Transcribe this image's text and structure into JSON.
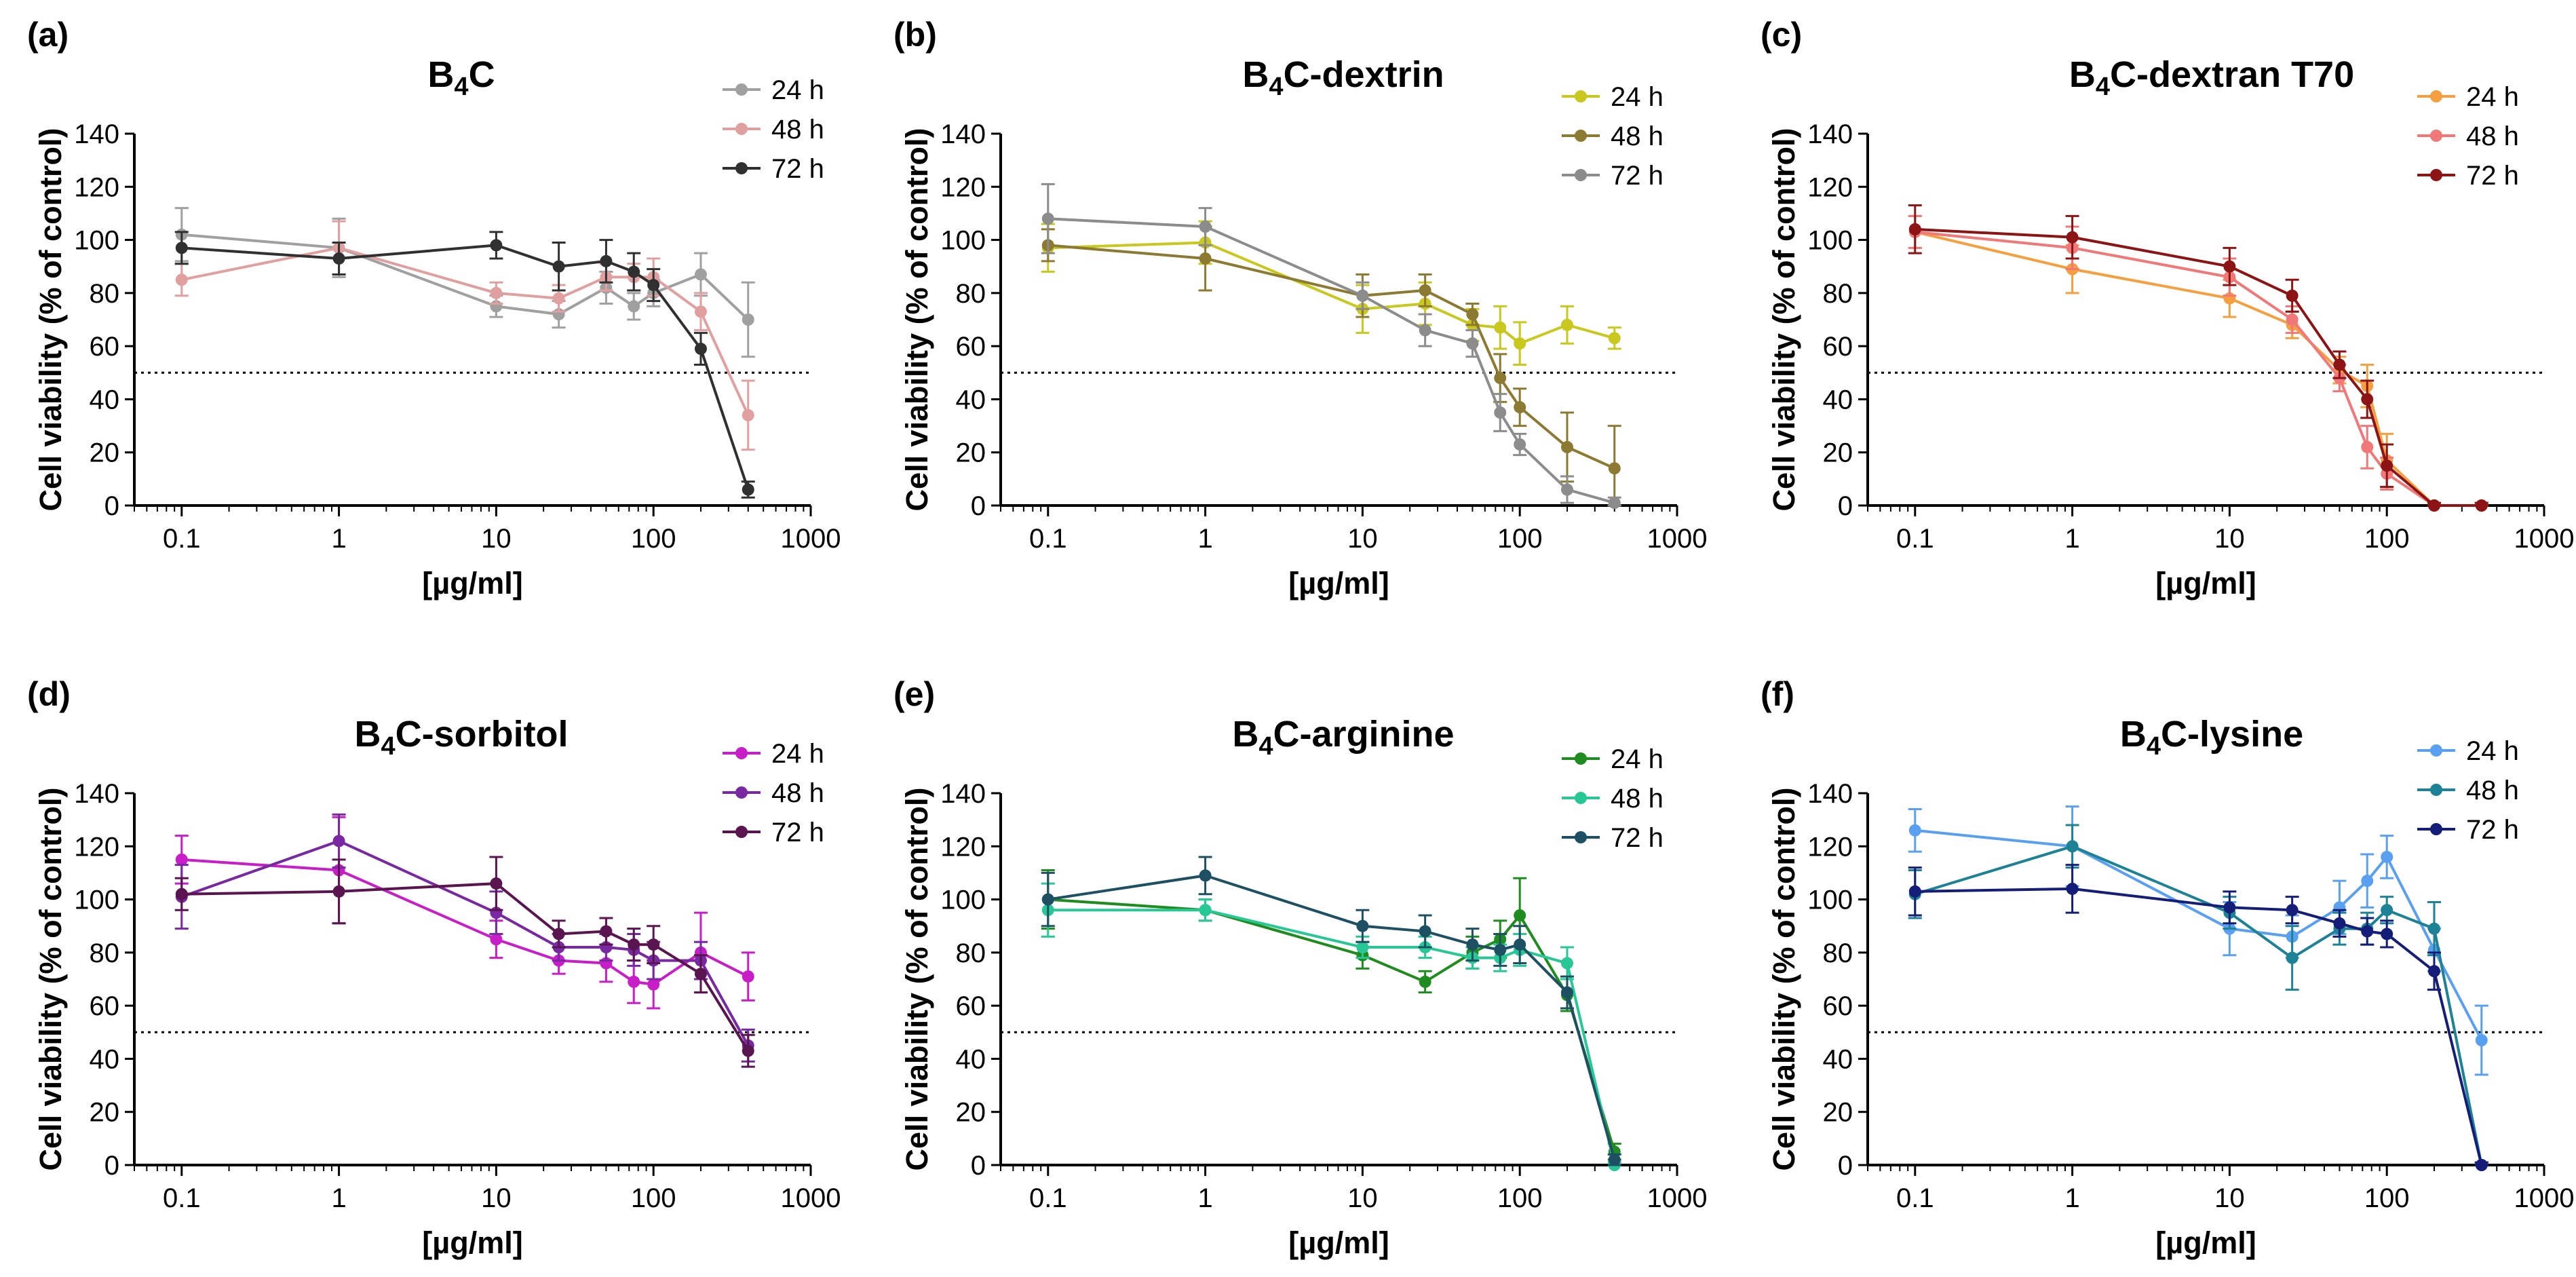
{
  "chart_data": [
    {
      "type": "line",
      "panel": "(a)",
      "title_main": "B",
      "title_sub": "4",
      "title_rest": "C",
      "xlabel": "[µg/ml]",
      "ylabel": "Cell viability (% of control)",
      "xscale": "log",
      "xlim": [
        0.05,
        1000
      ],
      "ylim": [
        0,
        140
      ],
      "xticks": [
        "0.1",
        "1",
        "10",
        "100",
        "1000"
      ],
      "yticks": [
        "0",
        "20",
        "40",
        "60",
        "80",
        "100",
        "120",
        "140"
      ],
      "reference_line": 50,
      "legend_position": "top-right",
      "series": [
        {
          "name": "24 h",
          "color": "#a0a0a0",
          "x": [
            0.1,
            1,
            10,
            25,
            50,
            75,
            100,
            200,
            400
          ],
          "y": [
            102,
            97,
            75,
            72,
            82,
            75,
            80,
            87,
            70
          ],
          "err": [
            10,
            11,
            4,
            5,
            6,
            5,
            5,
            8,
            14
          ]
        },
        {
          "name": "48 h",
          "color": "#e0a0a0",
          "x": [
            0.1,
            1,
            10,
            25,
            50,
            75,
            100,
            200,
            400
          ],
          "y": [
            85,
            97,
            80,
            78,
            86,
            86,
            86,
            73,
            34
          ],
          "err": [
            6,
            10,
            4,
            5,
            5,
            5,
            7,
            7,
            13
          ]
        },
        {
          "name": "72 h",
          "color": "#303030",
          "x": [
            0.1,
            1,
            10,
            25,
            50,
            75,
            100,
            200,
            400
          ],
          "y": [
            97,
            93,
            98,
            90,
            92,
            88,
            83,
            59,
            6
          ],
          "err": [
            6,
            6,
            5,
            9,
            8,
            7,
            6,
            6,
            3
          ]
        }
      ]
    },
    {
      "type": "line",
      "panel": "(b)",
      "title_main": "B",
      "title_sub": "4",
      "title_rest": "C-dextrin",
      "xlabel": "[µg/ml]",
      "ylabel": "Cell viability (% of control)",
      "xscale": "log",
      "xlim": [
        0.05,
        1000
      ],
      "ylim": [
        0,
        140
      ],
      "xticks": [
        "0.1",
        "1",
        "10",
        "100",
        "1000"
      ],
      "yticks": [
        "0",
        "20",
        "40",
        "60",
        "80",
        "100",
        "120",
        "140"
      ],
      "reference_line": 50,
      "legend_position": "top-right",
      "series": [
        {
          "name": "24 h",
          "color": "#c8c81e",
          "x": [
            0.1,
            1,
            10,
            25,
            50,
            75,
            100,
            200,
            400
          ],
          "y": [
            97,
            99,
            74,
            76,
            68,
            67,
            61,
            68,
            63
          ],
          "err": [
            9,
            8,
            9,
            8,
            6,
            8,
            8,
            7,
            4
          ]
        },
        {
          "name": "48 h",
          "color": "#8c7a32",
          "x": [
            0.1,
            1,
            10,
            25,
            50,
            75,
            100,
            200,
            400
          ],
          "y": [
            98,
            93,
            79,
            81,
            72,
            48,
            37,
            22,
            14
          ],
          "err": [
            6,
            12,
            8,
            6,
            4,
            9,
            7,
            13,
            16
          ]
        },
        {
          "name": "72 h",
          "color": "#8c8c8c",
          "x": [
            0.1,
            1,
            10,
            25,
            50,
            75,
            100,
            200,
            400
          ],
          "y": [
            108,
            105,
            79,
            66,
            61,
            35,
            23,
            6,
            1
          ],
          "err": [
            13,
            7,
            5,
            6,
            5,
            7,
            4,
            5,
            2
          ]
        }
      ]
    },
    {
      "type": "line",
      "panel": "(c)",
      "title_main": "B",
      "title_sub": "4",
      "title_rest": "C-dextran T70",
      "xlabel": "[µg/ml]",
      "ylabel": "Cell viability (% of control)",
      "xscale": "log",
      "xlim": [
        0.05,
        1000
      ],
      "ylim": [
        0,
        140
      ],
      "xticks": [
        "0.1",
        "1",
        "10",
        "100",
        "1000"
      ],
      "yticks": [
        "0",
        "20",
        "40",
        "60",
        "80",
        "100",
        "120",
        "140"
      ],
      "reference_line": 50,
      "legend_position": "top-right",
      "series": [
        {
          "name": "24 h",
          "color": "#f5a040",
          "x": [
            0.1,
            1,
            10,
            25,
            50,
            75,
            100,
            200,
            400
          ],
          "y": [
            103,
            89,
            78,
            68,
            51,
            45,
            17,
            0,
            0
          ],
          "err": [
            6,
            9,
            7,
            5,
            5,
            8,
            10,
            1,
            1
          ]
        },
        {
          "name": "48 h",
          "color": "#f07878",
          "x": [
            0.1,
            1,
            10,
            25,
            50,
            75,
            100,
            200,
            400
          ],
          "y": [
            103,
            97,
            86,
            70,
            48,
            22,
            12,
            0,
            0
          ],
          "err": [
            6,
            8,
            7,
            5,
            5,
            8,
            6,
            1,
            1
          ]
        },
        {
          "name": "72 h",
          "color": "#8c1414",
          "x": [
            0.1,
            1,
            10,
            25,
            50,
            75,
            100,
            200,
            400
          ],
          "y": [
            104,
            101,
            90,
            79,
            53,
            40,
            15,
            0,
            0
          ],
          "err": [
            9,
            8,
            7,
            6,
            5,
            7,
            8,
            1,
            1
          ]
        }
      ]
    },
    {
      "type": "line",
      "panel": "(d)",
      "title_main": "B",
      "title_sub": "4",
      "title_rest": "C-sorbitol",
      "xlabel": "[µg/ml]",
      "ylabel": "Cell viability (% of control)",
      "xscale": "log",
      "xlim": [
        0.05,
        1000
      ],
      "ylim": [
        0,
        140
      ],
      "xticks": [
        "0.1",
        "1",
        "10",
        "100",
        "1000"
      ],
      "yticks": [
        "0",
        "20",
        "40",
        "60",
        "80",
        "100",
        "120",
        "140"
      ],
      "reference_line": 50,
      "legend_position": "top-right",
      "series": [
        {
          "name": "24 h",
          "color": "#c81ec8",
          "x": [
            0.1,
            1,
            10,
            25,
            50,
            75,
            100,
            200,
            400
          ],
          "y": [
            115,
            111,
            85,
            77,
            76,
            69,
            68,
            80,
            71
          ],
          "err": [
            9,
            20,
            7,
            5,
            7,
            8,
            9,
            15,
            9
          ]
        },
        {
          "name": "48 h",
          "color": "#7828a0",
          "x": [
            0.1,
            1,
            10,
            25,
            50,
            75,
            100,
            200,
            400
          ],
          "y": [
            101,
            122,
            95,
            82,
            82,
            81,
            77,
            77,
            45
          ],
          "err": [
            12,
            10,
            8,
            5,
            5,
            6,
            7,
            7,
            6
          ]
        },
        {
          "name": "72 h",
          "color": "#5a1450",
          "x": [
            0.1,
            1,
            10,
            25,
            50,
            75,
            100,
            200,
            400
          ],
          "y": [
            102,
            103,
            106,
            87,
            88,
            83,
            83,
            72,
            43
          ],
          "err": [
            6,
            12,
            10,
            5,
            5,
            6,
            7,
            7,
            6
          ]
        }
      ]
    },
    {
      "type": "line",
      "panel": "(e)",
      "title_main": "B",
      "title_sub": "4",
      "title_rest": "C-arginine",
      "xlabel": "[µg/ml]",
      "ylabel": "Cell viability (% of control)",
      "xscale": "log",
      "xlim": [
        0.05,
        1000
      ],
      "ylim": [
        0,
        140
      ],
      "xticks": [
        "0.1",
        "1",
        "10",
        "100",
        "1000"
      ],
      "yticks": [
        "0",
        "20",
        "40",
        "60",
        "80",
        "100",
        "120",
        "140"
      ],
      "reference_line": 50,
      "legend_position": "top-right",
      "series": [
        {
          "name": "24 h",
          "color": "#1e8c1e",
          "x": [
            0.1,
            1,
            10,
            25,
            50,
            75,
            100,
            200,
            400
          ],
          "y": [
            100,
            96,
            79,
            69,
            80,
            85,
            94,
            64,
            5
          ],
          "err": [
            11,
            4,
            5,
            4,
            6,
            7,
            14,
            6,
            3
          ]
        },
        {
          "name": "48 h",
          "color": "#28c896",
          "x": [
            0.1,
            1,
            10,
            25,
            50,
            75,
            100,
            200,
            400
          ],
          "y": [
            96,
            96,
            82,
            82,
            78,
            78,
            81,
            76,
            0
          ],
          "err": [
            10,
            4,
            4,
            4,
            4,
            5,
            6,
            6,
            1
          ]
        },
        {
          "name": "72 h",
          "color": "#1e5064",
          "x": [
            0.1,
            1,
            10,
            25,
            50,
            75,
            100,
            200,
            400
          ],
          "y": [
            100,
            109,
            90,
            88,
            83,
            81,
            83,
            65,
            2
          ],
          "err": [
            10,
            7,
            6,
            6,
            6,
            6,
            7,
            6,
            2
          ]
        }
      ]
    },
    {
      "type": "line",
      "panel": "(f)",
      "title_main": "B",
      "title_sub": "4",
      "title_rest": "C-lysine",
      "xlabel": "[µg/ml]",
      "ylabel": "Cell viability (% of control)",
      "xscale": "log",
      "xlim": [
        0.05,
        1000
      ],
      "ylim": [
        0,
        140
      ],
      "xticks": [
        "0.1",
        "1",
        "10",
        "100",
        "1000"
      ],
      "yticks": [
        "0",
        "20",
        "40",
        "60",
        "80",
        "100",
        "120",
        "140"
      ],
      "reference_line": 50,
      "legend_position": "top-right",
      "series": [
        {
          "name": "24 h",
          "color": "#5aa0f0",
          "x": [
            0.1,
            1,
            10,
            25,
            50,
            75,
            100,
            200,
            400
          ],
          "y": [
            126,
            120,
            89,
            86,
            97,
            107,
            116,
            81,
            47
          ],
          "err": [
            8,
            15,
            10,
            8,
            10,
            10,
            8,
            8,
            13
          ]
        },
        {
          "name": "48 h",
          "color": "#1e8296",
          "x": [
            0.1,
            1,
            10,
            25,
            50,
            75,
            100,
            200,
            400
          ],
          "y": [
            102,
            120,
            95,
            78,
            89,
            89,
            96,
            89,
            0
          ],
          "err": [
            9,
            8,
            6,
            12,
            6,
            6,
            5,
            10,
            1
          ]
        },
        {
          "name": "72 h",
          "color": "#141e78",
          "x": [
            0.1,
            1,
            10,
            25,
            50,
            75,
            100,
            200,
            400
          ],
          "y": [
            103,
            104,
            97,
            96,
            91,
            88,
            87,
            73,
            0
          ],
          "err": [
            9,
            9,
            6,
            5,
            5,
            5,
            5,
            7,
            1
          ]
        }
      ]
    }
  ]
}
